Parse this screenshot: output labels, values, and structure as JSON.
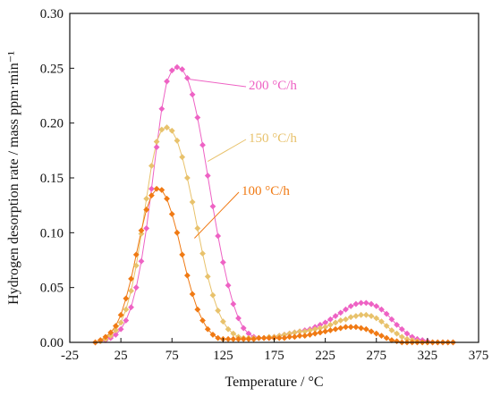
{
  "chart_data": {
    "type": "scatter",
    "xlabel": "Temperature / °C",
    "ylabel": "Hydrogen desorption rate / mass ppm·min⁻¹",
    "xlim": [
      -25,
      375
    ],
    "ylim": [
      0,
      0.3
    ],
    "xticks": [
      "-25",
      "25",
      "75",
      "125",
      "175",
      "225",
      "275",
      "325",
      "375"
    ],
    "yticks": [
      "0.00",
      "0.05",
      "0.10",
      "0.15",
      "0.20",
      "0.25",
      "0.30"
    ],
    "grid": false,
    "legend": "none",
    "series": [
      {
        "name": "200 °C/h",
        "color": "#ee62c4",
        "marker": "diamond",
        "fit_line": true,
        "x": [
          0,
          5,
          10,
          15,
          20,
          25,
          30,
          35,
          40,
          45,
          50,
          55,
          60,
          65,
          70,
          75,
          80,
          85,
          90,
          95,
          100,
          105,
          110,
          115,
          120,
          125,
          130,
          135,
          140,
          145,
          150,
          155,
          160,
          165,
          170,
          175,
          180,
          185,
          190,
          195,
          200,
          205,
          210,
          215,
          220,
          225,
          230,
          235,
          240,
          245,
          250,
          255,
          260,
          265,
          270,
          275,
          280,
          285,
          290,
          295,
          300,
          305,
          310,
          315,
          320,
          325,
          330,
          335,
          340,
          345,
          350
        ],
        "y": [
          0.0,
          0.001,
          0.002,
          0.004,
          0.007,
          0.012,
          0.02,
          0.032,
          0.05,
          0.074,
          0.104,
          0.14,
          0.178,
          0.213,
          0.238,
          0.248,
          0.251,
          0.249,
          0.241,
          0.226,
          0.205,
          0.18,
          0.152,
          0.124,
          0.097,
          0.073,
          0.052,
          0.035,
          0.022,
          0.013,
          0.008,
          0.005,
          0.004,
          0.004,
          0.004,
          0.005,
          0.006,
          0.007,
          0.008,
          0.009,
          0.01,
          0.011,
          0.012,
          0.014,
          0.016,
          0.018,
          0.021,
          0.024,
          0.027,
          0.03,
          0.033,
          0.035,
          0.036,
          0.036,
          0.035,
          0.033,
          0.03,
          0.026,
          0.021,
          0.016,
          0.012,
          0.008,
          0.005,
          0.003,
          0.002,
          0.001,
          0.0,
          0.0,
          0.0,
          0.0,
          0.0
        ]
      },
      {
        "name": "150 °C/h",
        "color": "#e8c26c",
        "marker": "diamond",
        "fit_line": true,
        "x": [
          0,
          5,
          10,
          15,
          20,
          25,
          30,
          35,
          40,
          45,
          50,
          55,
          60,
          65,
          70,
          75,
          80,
          85,
          90,
          95,
          100,
          105,
          110,
          115,
          120,
          125,
          130,
          135,
          140,
          145,
          150,
          155,
          160,
          165,
          170,
          175,
          180,
          185,
          190,
          195,
          200,
          205,
          210,
          215,
          220,
          225,
          230,
          235,
          240,
          245,
          250,
          255,
          260,
          265,
          270,
          275,
          280,
          285,
          290,
          295,
          300,
          305,
          310,
          315,
          320,
          325,
          330,
          335,
          340,
          345,
          350
        ],
        "y": [
          0.0,
          0.001,
          0.003,
          0.006,
          0.011,
          0.018,
          0.03,
          0.047,
          0.07,
          0.099,
          0.131,
          0.161,
          0.183,
          0.194,
          0.196,
          0.193,
          0.184,
          0.169,
          0.15,
          0.128,
          0.104,
          0.081,
          0.06,
          0.043,
          0.029,
          0.019,
          0.012,
          0.008,
          0.005,
          0.004,
          0.004,
          0.004,
          0.004,
          0.004,
          0.005,
          0.005,
          0.006,
          0.007,
          0.008,
          0.009,
          0.01,
          0.01,
          0.011,
          0.012,
          0.013,
          0.014,
          0.016,
          0.018,
          0.02,
          0.021,
          0.023,
          0.024,
          0.025,
          0.025,
          0.024,
          0.022,
          0.019,
          0.015,
          0.011,
          0.008,
          0.005,
          0.003,
          0.002,
          0.001,
          0.0,
          0.0,
          0.0,
          0.0,
          0.0,
          0.0,
          0.0
        ]
      },
      {
        "name": "100 °C/h",
        "color": "#f07a14",
        "marker": "diamond",
        "fit_line": true,
        "x": [
          0,
          5,
          10,
          15,
          20,
          25,
          30,
          35,
          40,
          45,
          50,
          55,
          60,
          65,
          70,
          75,
          80,
          85,
          90,
          95,
          100,
          105,
          110,
          115,
          120,
          125,
          130,
          135,
          140,
          145,
          150,
          155,
          160,
          165,
          170,
          175,
          180,
          185,
          190,
          195,
          200,
          205,
          210,
          215,
          220,
          225,
          230,
          235,
          240,
          245,
          250,
          255,
          260,
          265,
          270,
          275,
          280,
          285,
          290,
          295,
          300,
          305,
          310,
          315,
          320,
          325,
          330,
          335,
          340,
          345,
          350
        ],
        "y": [
          0.0,
          0.002,
          0.005,
          0.009,
          0.015,
          0.025,
          0.04,
          0.058,
          0.08,
          0.102,
          0.121,
          0.134,
          0.14,
          0.139,
          0.131,
          0.117,
          0.1,
          0.08,
          0.061,
          0.044,
          0.03,
          0.02,
          0.012,
          0.007,
          0.004,
          0.003,
          0.003,
          0.003,
          0.003,
          0.003,
          0.003,
          0.003,
          0.004,
          0.004,
          0.004,
          0.004,
          0.004,
          0.004,
          0.005,
          0.005,
          0.006,
          0.006,
          0.007,
          0.008,
          0.009,
          0.01,
          0.011,
          0.012,
          0.013,
          0.014,
          0.014,
          0.014,
          0.013,
          0.012,
          0.01,
          0.008,
          0.006,
          0.004,
          0.002,
          0.001,
          0.0,
          0.0,
          0.0,
          0.0,
          0.0,
          0.0,
          0.0,
          0.0,
          0.0,
          0.0,
          0.0
        ]
      }
    ],
    "annotations": [
      {
        "text": "200 °C/h",
        "series": 0,
        "arrow_to_x": 92,
        "arrow_to_y": 0.24
      },
      {
        "text": "150 °C/h",
        "series": 1,
        "arrow_to_x": 110,
        "arrow_to_y": 0.165
      },
      {
        "text": "100 °C/h",
        "series": 2,
        "arrow_to_x": 97,
        "arrow_to_y": 0.095
      }
    ]
  }
}
